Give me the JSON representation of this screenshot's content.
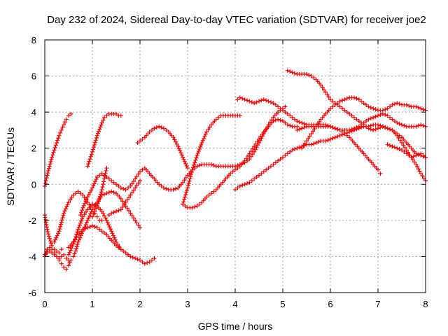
{
  "chart_data": {
    "type": "scatter",
    "title": "Day 232 of 2024, Sidereal Day-to-day VTEC variation (SDTVAR) for receiver joe2",
    "xlabel": "GPS time / hours",
    "ylabel": "SDTVAR / TECUs",
    "xlim": [
      0,
      8
    ],
    "ylim": [
      -6,
      8
    ],
    "xticks": [
      "0",
      "1",
      "2",
      "3",
      "4",
      "5",
      "6",
      "7",
      "8"
    ],
    "yticks": [
      "-6",
      "-4",
      "-2",
      "0",
      "2",
      "4",
      "6",
      "8"
    ],
    "grid": true,
    "marker": "plus",
    "color": "#ff0000",
    "series": [
      {
        "x": [
          0.0,
          0.05,
          0.1,
          0.15,
          0.2,
          0.25,
          0.3,
          0.35,
          0.4,
          0.45,
          0.5,
          0.55
        ],
        "y": [
          -0.1,
          0.5,
          1.0,
          1.5,
          1.9,
          2.3,
          2.7,
          3.0,
          3.3,
          3.6,
          3.8,
          3.9
        ]
      },
      {
        "x": [
          0.0,
          0.05,
          0.1,
          0.15,
          0.2,
          0.25,
          0.3,
          0.35,
          0.4,
          0.45,
          0.5
        ],
        "y": [
          -3.9,
          -3.8,
          -3.7,
          -3.8,
          -3.9,
          -4.0,
          -4.1,
          -4.0,
          -3.9,
          -4.1,
          -4.2
        ]
      },
      {
        "x": [
          0.0,
          0.05,
          0.1,
          0.15,
          0.2,
          0.25,
          0.3,
          0.35
        ],
        "y": [
          -1.7,
          -2.5,
          -3.0,
          -3.4,
          -3.6,
          -3.7,
          -3.8,
          -3.6
        ]
      },
      {
        "x": [
          0.0,
          0.05,
          0.1,
          0.15,
          0.2,
          0.25,
          0.3,
          0.35,
          0.4,
          0.45,
          0.5,
          0.55,
          0.6,
          0.65,
          0.7,
          0.8,
          0.9,
          1.0,
          1.1,
          1.2,
          1.3,
          1.4,
          1.5,
          1.6,
          1.7,
          1.8,
          1.9,
          2.0
        ],
        "y": [
          -4.0,
          -3.6,
          -3.5,
          -3.6,
          -3.8,
          -4.0,
          -4.2,
          -4.4,
          -4.6,
          -4.7,
          -4.5,
          -4.2,
          -4.0,
          -3.7,
          -3.2,
          -2.6,
          -2.0,
          -1.4,
          -1.0,
          -0.6,
          -0.5,
          -0.4,
          -0.5,
          -0.8,
          -1.2,
          -1.6,
          -2.0,
          -2.4
        ]
      },
      {
        "x": [
          0.2,
          0.3,
          0.4,
          0.5,
          0.6,
          0.7,
          0.8,
          0.9,
          1.0,
          1.05,
          1.1,
          1.15,
          1.2
        ],
        "y": [
          -3.2,
          -2.6,
          -1.6,
          -1.0,
          -0.6,
          -0.4,
          -0.6,
          -1.0,
          -1.4,
          -1.6,
          -1.8,
          -2.0,
          -2.0
        ]
      },
      {
        "x": [
          0.5,
          0.6,
          0.7,
          0.8,
          0.9,
          1.0,
          1.1,
          1.2,
          1.3,
          1.4,
          1.5,
          1.6,
          1.7,
          1.8
        ],
        "y": [
          -3.9,
          -3.3,
          -2.5,
          -1.8,
          -1.4,
          -1.1,
          -1.2,
          -1.5,
          -2.0,
          -2.6,
          -3.2,
          -3.6,
          -3.8,
          -4.0
        ]
      },
      {
        "x": [
          0.5,
          0.6,
          0.7,
          0.8,
          0.9,
          1.0,
          1.1,
          1.2,
          1.3,
          1.4,
          1.5,
          1.6,
          1.7,
          1.8,
          1.9,
          2.0,
          2.05,
          2.1,
          2.2,
          2.3
        ],
        "y": [
          -3.5,
          -3.2,
          -2.8,
          -2.5,
          -2.4,
          -2.3,
          -2.4,
          -2.6,
          -2.8,
          -3.1,
          -3.4,
          -3.6,
          -3.8,
          -4.0,
          -4.1,
          -4.2,
          -4.3,
          -4.4,
          -4.3,
          -4.1
        ]
      },
      {
        "x": [
          0.75,
          0.8,
          0.9,
          1.0,
          1.1,
          1.2,
          1.3,
          1.4,
          1.5,
          1.6,
          1.7,
          1.8,
          1.9,
          2.0,
          2.1,
          2.2,
          2.3,
          2.4,
          2.5,
          2.6,
          2.7,
          2.8,
          2.9,
          3.0,
          3.1,
          3.2,
          3.3,
          3.4,
          3.5,
          3.6,
          3.7,
          3.8,
          3.9,
          4.0,
          4.1,
          4.2,
          4.3,
          4.4,
          4.5,
          4.6,
          4.7,
          4.8,
          4.9,
          5.0,
          5.05
        ],
        "y": [
          -1.7,
          -1.3,
          -0.7,
          -0.2,
          0.4,
          0.6,
          0.4,
          0.2,
          0.0,
          -0.2,
          -0.3,
          -0.1,
          0.3,
          0.7,
          0.9,
          0.6,
          0.3,
          0.0,
          -0.2,
          -0.3,
          -0.3,
          -0.2,
          0.1,
          0.5,
          0.8,
          1.0,
          1.1,
          1.1,
          1.1,
          1.0,
          1.0,
          1.0,
          1.0,
          1.0,
          1.1,
          1.2,
          1.4,
          1.8,
          2.3,
          2.8,
          3.3,
          3.7,
          4.0,
          4.2,
          4.3
        ]
      },
      {
        "x": [
          0.9,
          1.0,
          1.1,
          1.2,
          1.25,
          1.3,
          1.35,
          1.4,
          1.45,
          1.5,
          1.55,
          1.6
        ],
        "y": [
          1.0,
          1.8,
          2.7,
          3.4,
          3.7,
          3.8,
          3.9,
          3.9,
          3.9,
          3.9,
          3.8,
          3.8
        ]
      },
      {
        "x": [
          1.35,
          1.4,
          1.5,
          1.6,
          1.7,
          1.8,
          1.9,
          2.0
        ],
        "y": [
          -1.7,
          -1.6,
          -1.5,
          -1.4,
          -1.0,
          -0.6,
          -0.2,
          0.2
        ]
      },
      {
        "x": [
          1.0,
          1.05,
          1.1,
          1.15,
          1.2,
          1.25,
          1.3
        ],
        "y": [
          -1.8,
          -1.5,
          -1.2,
          -0.8,
          -0.3,
          0.3,
          0.9
        ]
      },
      {
        "x": [
          1.95,
          2.0,
          2.1,
          2.2,
          2.3,
          2.4,
          2.5,
          2.6,
          2.7,
          2.8,
          2.9,
          3.0
        ],
        "y": [
          2.3,
          2.4,
          2.6,
          2.9,
          3.1,
          3.2,
          3.1,
          2.9,
          2.6,
          2.1,
          1.5,
          0.9
        ]
      },
      {
        "x": [
          2.9,
          3.0,
          3.1,
          3.2,
          3.3,
          3.4,
          3.5,
          3.6,
          3.7,
          3.8,
          3.9,
          4.0,
          4.05,
          4.1
        ],
        "y": [
          -1.1,
          -0.2,
          0.8,
          1.6,
          2.3,
          2.9,
          3.3,
          3.6,
          3.8,
          3.8,
          3.8,
          3.8,
          3.8,
          3.8
        ]
      },
      {
        "x": [
          2.9,
          3.0,
          3.1,
          3.2,
          3.3,
          3.4,
          3.5,
          3.6,
          3.7,
          3.8,
          3.9,
          4.0,
          4.1,
          4.2,
          4.3,
          4.4,
          4.5,
          4.6,
          4.7,
          4.8,
          4.9,
          5.0,
          5.1,
          5.2,
          5.3
        ],
        "y": [
          -1.1,
          -1.3,
          -1.3,
          -1.2,
          -1.0,
          -0.7,
          -0.5,
          -0.3,
          0.0,
          0.3,
          0.6,
          0.8,
          1.0,
          1.3,
          1.7,
          2.1,
          2.5,
          2.9,
          3.2,
          3.5,
          3.6,
          3.5,
          3.3,
          3.2,
          3.2
        ]
      },
      {
        "x": [
          4.05,
          4.1,
          4.2,
          4.3,
          4.4,
          4.5,
          4.6,
          4.7,
          4.8,
          4.9,
          5.0,
          5.1,
          5.2,
          5.3,
          5.4,
          5.5,
          5.6,
          5.7,
          5.8,
          5.9,
          6.0,
          6.1,
          6.2,
          6.3,
          6.4,
          6.5,
          6.6,
          6.7,
          6.8,
          6.9,
          7.0,
          7.05
        ],
        "y": [
          4.7,
          4.8,
          4.7,
          4.6,
          4.5,
          4.6,
          4.7,
          4.6,
          4.5,
          4.3,
          4.1,
          3.9,
          3.7,
          3.5,
          3.4,
          3.3,
          3.3,
          3.3,
          3.3,
          3.3,
          3.2,
          3.1,
          3.0,
          2.8,
          2.6,
          2.3,
          2.0,
          1.7,
          1.4,
          1.1,
          0.8,
          0.6
        ]
      },
      {
        "x": [
          4.0,
          4.1,
          4.2,
          4.3,
          4.4,
          4.5,
          4.6,
          4.7,
          4.8,
          4.9,
          5.0,
          5.1,
          5.2,
          5.3,
          5.4,
          5.5,
          5.6,
          5.7,
          5.8,
          5.9,
          6.0,
          6.1,
          6.2,
          6.3,
          6.4,
          6.5,
          6.6,
          6.7,
          6.8,
          6.9,
          7.0,
          7.1,
          7.2,
          7.3,
          7.4,
          7.5,
          7.6,
          7.7,
          7.8,
          7.9,
          8.0
        ],
        "y": [
          -0.3,
          -0.1,
          0.0,
          0.1,
          0.3,
          0.5,
          0.7,
          0.9,
          1.1,
          1.3,
          1.5,
          1.7,
          1.9,
          2.0,
          2.1,
          2.2,
          2.2,
          2.3,
          2.4,
          2.4,
          2.5,
          2.6,
          2.7,
          2.8,
          2.9,
          3.0,
          3.1,
          3.2,
          3.2,
          3.3,
          3.3,
          3.2,
          3.1,
          3.0,
          2.8,
          2.6,
          2.3,
          2.0,
          1.7,
          1.6,
          1.5
        ]
      },
      {
        "x": [
          5.1,
          5.2,
          5.3,
          5.4,
          5.5,
          5.6,
          5.7,
          5.8,
          5.9,
          6.0,
          6.1,
          6.2,
          6.3,
          6.4,
          6.5,
          6.6,
          6.7,
          6.8,
          6.9,
          7.0,
          7.1,
          7.2,
          7.3,
          7.4,
          7.5,
          7.6,
          7.7,
          7.8,
          7.9,
          8.0
        ],
        "y": [
          6.3,
          6.2,
          6.1,
          6.1,
          6.1,
          6.0,
          5.8,
          5.5,
          5.1,
          4.7,
          4.5,
          4.3,
          4.1,
          3.9,
          3.7,
          3.5,
          3.3,
          3.1,
          3.0,
          3.1,
          3.2,
          3.1,
          3.0,
          2.7,
          2.3,
          1.9,
          1.5,
          1.1,
          0.6,
          0.2
        ]
      },
      {
        "x": [
          5.4,
          5.5,
          5.6,
          5.7,
          5.8,
          5.9,
          6.0,
          6.1,
          6.2,
          6.3,
          6.4,
          6.5,
          6.6,
          6.7,
          6.8,
          6.9,
          7.0,
          7.1,
          7.2,
          7.3,
          7.4,
          7.5,
          7.6,
          7.7,
          7.8,
          7.9,
          8.0
        ],
        "y": [
          2.0,
          2.4,
          2.8,
          3.2,
          3.6,
          3.9,
          4.2,
          4.4,
          4.6,
          4.7,
          4.8,
          4.8,
          4.7,
          4.5,
          4.3,
          4.2,
          4.1,
          4.1,
          4.2,
          4.4,
          4.5,
          4.4,
          4.4,
          4.3,
          4.3,
          4.2,
          4.1
        ]
      },
      {
        "x": [
          5.3,
          5.4,
          5.5,
          5.6,
          5.7,
          5.8,
          5.9,
          6.0,
          6.1,
          6.2,
          6.3,
          6.4,
          6.5,
          6.6,
          6.7,
          6.8,
          6.9,
          7.0,
          7.1,
          7.2,
          7.3,
          7.4,
          7.5,
          7.6,
          7.7,
          7.8,
          7.9,
          8.0
        ],
        "y": [
          3.0,
          3.1,
          3.2,
          3.2,
          3.2,
          3.2,
          3.2,
          3.2,
          3.1,
          3.0,
          3.0,
          3.0,
          3.1,
          3.2,
          3.4,
          3.6,
          3.7,
          3.8,
          3.9,
          3.8,
          3.6,
          3.4,
          3.3,
          3.2,
          3.2,
          3.2,
          3.3,
          3.2
        ]
      },
      {
        "x": [
          7.2,
          7.3,
          7.4,
          7.5,
          7.6,
          7.7,
          7.8,
          7.9,
          8.0
        ],
        "y": [
          2.2,
          2.1,
          2.0,
          1.9,
          1.7,
          1.5,
          1.6,
          1.7,
          1.5
        ]
      }
    ]
  }
}
